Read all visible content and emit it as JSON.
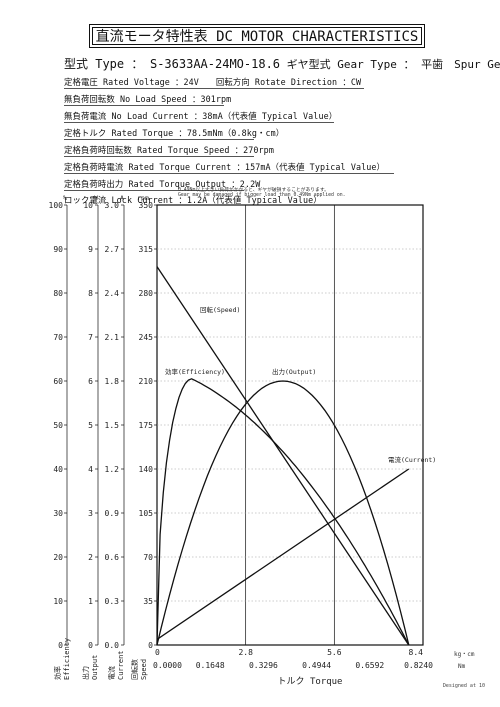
{
  "header": {
    "title": "直流モータ特性表 DC MOTOR CHARACTERISTICS",
    "model_label": "型式 Type ：",
    "model_value": "S-3633AA-24MO-18.6",
    "gear_label": "ギヤ型式 Gear Type ：",
    "gear_value": "平歯　Spur Gear"
  },
  "specs": [
    "定格電圧 Rated Voltage ：24V　　回転方向 Rotate Direction ：CW",
    "無負荷回転数 No Load Speed ：301rpm",
    "無負荷電流 No Load Current ：38mA（代表値 Typical Value）",
    "定格トルク Rated Torque ：78.5mNm（0.8kg・cm）",
    "定格負荷時回転数 Rated Torque Speed ：270rpm",
    "定格負荷時電流 Rated Torque Current ：157mA（代表値 Typical Value）",
    "定格負荷時出力 Rated Torque Output ：2.2W",
    "ロック電流 Lock Current ：1.2A（代表値 Typical Value）"
  ],
  "warning": {
    "line1": "0.49Nm以上大きい負荷がかかると、ギヤが破損することがあります。",
    "line2": "Gear may be damaged if bigger load than 0.49Nm applied on."
  },
  "footer": "Designed at 10",
  "chart_data": {
    "type": "line",
    "xlabel": "トルク Torque",
    "x_units": {
      "kgcm": "kg・cm",
      "nm": "Nm"
    },
    "x_ticks_kgcm": [
      "0",
      "2.8",
      "5.6",
      "8.4"
    ],
    "x_ticks_nm": [
      "0.0000",
      "0.1648",
      "0.3296",
      "0.4944",
      "0.6592",
      "0.8240"
    ],
    "xlim_kgcm": [
      0,
      8.4
    ],
    "axes": {
      "efficiency": {
        "unit": "%",
        "label": "効率 Efficiency",
        "ticks": [
          "100",
          "90",
          "80",
          "70",
          "60",
          "50",
          "40",
          "30",
          "20",
          "10",
          "0"
        ],
        "max": 100
      },
      "output": {
        "unit": "W",
        "label": "出力 Output",
        "ticks": [
          "10",
          "9",
          "8",
          "7",
          "6",
          "5",
          "4",
          "3",
          "2",
          "1",
          "0"
        ],
        "max": 10
      },
      "current": {
        "unit": "A",
        "label": "電流 Current",
        "ticks": [
          "3.0",
          "2.7",
          "2.4",
          "2.1",
          "1.8",
          "1.5",
          "1.2",
          "0.9",
          "0.6",
          "0.3",
          "0.0"
        ],
        "max": 3.0
      },
      "speed": {
        "unit": "rpm",
        "label": "回転数 Speed",
        "ticks": [
          "350",
          "315",
          "280",
          "245",
          "210",
          "175",
          "140",
          "105",
          "70",
          "35",
          "0"
        ],
        "max": 350
      }
    },
    "grid": true,
    "series": [
      {
        "name": "回転(Speed)",
        "axis": "speed",
        "x": [
          0,
          7.95
        ],
        "y": [
          301,
          0
        ]
      },
      {
        "name": "電流(Current)",
        "axis": "current",
        "x": [
          0,
          7.95
        ],
        "y": [
          0.038,
          1.2
        ]
      },
      {
        "name": "出力(Output)",
        "axis": "output",
        "stall_kgcm": 7.95,
        "no_load_rpm": 301,
        "peak": 6.0
      },
      {
        "name": "効率(Efficiency)",
        "axis": "efficiency",
        "peak_x_kgcm": 1.1,
        "peak": 60.5
      }
    ]
  }
}
